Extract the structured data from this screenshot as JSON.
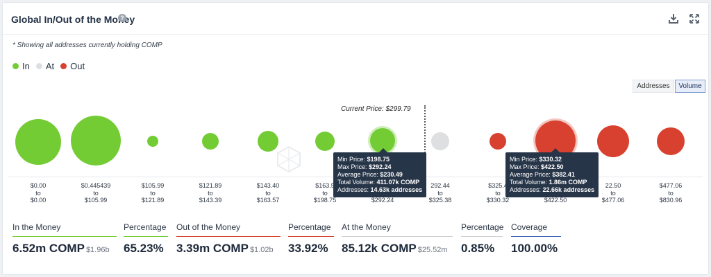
{
  "header": {
    "title": "Global In/Out of the Money",
    "help_icon": "?"
  },
  "note": "* Showing all addresses currently holding COMP",
  "legend": [
    {
      "label": "In",
      "color": "#74cc35"
    },
    {
      "label": "At",
      "color": "#dedfe0"
    },
    {
      "label": "Out",
      "color": "#d8412f"
    }
  ],
  "toggle": {
    "addresses": "Addresses",
    "volume": "Volume",
    "selected": "Volume"
  },
  "current_price": "Current Price: $299.79",
  "chart_data": {
    "type": "scatter",
    "encoding": "bubble size = total volume held in price bucket",
    "buckets": [
      {
        "range": [
          "$0.00",
          "to",
          "$0.00"
        ],
        "status": "In"
      },
      {
        "range": [
          "$0.445439",
          "to",
          "$105.99"
        ],
        "status": "In"
      },
      {
        "range": [
          "$105.99",
          "to",
          "$121.89"
        ],
        "status": "In"
      },
      {
        "range": [
          "$121.89",
          "to",
          "$143.39"
        ],
        "status": "In"
      },
      {
        "range": [
          "$143.40",
          "to",
          "$163.57"
        ],
        "status": "In"
      },
      {
        "range": [
          "$163.5",
          "to",
          "$198.75"
        ],
        "status": "In"
      },
      {
        "range": [
          "",
          "",
          "$292.24"
        ],
        "status": "In"
      },
      {
        "range": [
          "292.44",
          "to",
          "$325.38"
        ],
        "status": "At"
      },
      {
        "range": [
          "$325.4",
          "to",
          "$330.32"
        ],
        "status": "Out"
      },
      {
        "range": [
          "",
          "",
          "$422.50"
        ],
        "status": "Out"
      },
      {
        "range": [
          "22.50",
          "to",
          "$477.06"
        ],
        "status": "Out"
      },
      {
        "range": [
          "$477.06",
          "to",
          "$830.96"
        ],
        "status": "Out"
      }
    ]
  },
  "tooltips": [
    {
      "lines": [
        {
          "k": "Min Price: ",
          "v": "$198.75"
        },
        {
          "k": "Max Price: ",
          "v": "$292.24"
        },
        {
          "k": "Average Price: ",
          "v": "$230.49"
        },
        {
          "k": "Total Volume: ",
          "v": "411.07k COMP"
        },
        {
          "k": "Addresses: ",
          "v": "14.63k addresses"
        }
      ]
    },
    {
      "lines": [
        {
          "k": "Min Price: ",
          "v": "$330.32"
        },
        {
          "k": "Max Price: ",
          "v": "$422.50"
        },
        {
          "k": "Average Price: ",
          "v": "$382.41"
        },
        {
          "k": "Total Volume: ",
          "v": "1.86m COMP"
        },
        {
          "k": "Addresses: ",
          "v": "22.66k addresses"
        }
      ]
    }
  ],
  "stats": [
    {
      "label": "In the Money",
      "value": "6.52m COMP",
      "sub": "$1.96b",
      "color": "#74cc35"
    },
    {
      "label": "Percentage",
      "value": "65.23%",
      "sub": "",
      "color": "#74cc35"
    },
    {
      "label": "Out of the Money",
      "value": "3.39m COMP",
      "sub": "$1.02b",
      "color": "#d8412f"
    },
    {
      "label": "Percentage",
      "value": "33.92%",
      "sub": "",
      "color": "#d8412f"
    },
    {
      "label": "At the Money",
      "value": "85.12k COMP",
      "sub": "$25.52m",
      "color": "#cfd1d4"
    },
    {
      "label": "Percentage",
      "value": "0.85%",
      "sub": "",
      "color": "#cfd1d4"
    },
    {
      "label": "Coverage",
      "value": "100.00%",
      "sub": "",
      "color": "#3f63b5"
    }
  ],
  "colors": {
    "in": "#74cc35",
    "at": "#dedfe0",
    "out": "#d8412f"
  },
  "icons": {
    "download": "download-icon",
    "expand": "expand-icon",
    "help": "help-icon"
  }
}
